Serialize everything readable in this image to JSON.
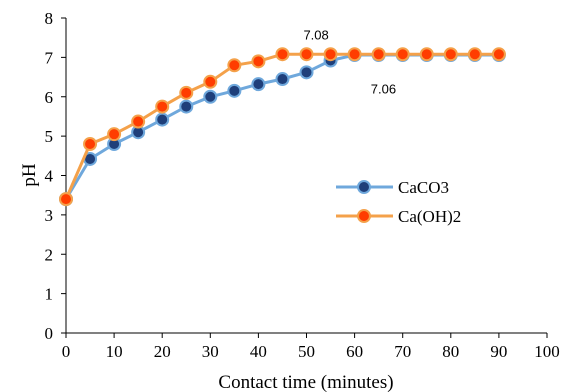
{
  "chart_data": {
    "type": "line",
    "title": "",
    "xlabel": "Contact time (minutes)",
    "ylabel": "pH",
    "xlim": [
      0,
      100
    ],
    "ylim": [
      0,
      8
    ],
    "xticks": [
      0,
      10,
      20,
      30,
      40,
      50,
      60,
      70,
      80,
      90,
      100
    ],
    "yticks": [
      0,
      1,
      2,
      3,
      4,
      5,
      6,
      7,
      8
    ],
    "grid": false,
    "legend_position": "right-middle",
    "x": [
      0,
      5,
      10,
      15,
      20,
      25,
      30,
      35,
      40,
      45,
      50,
      55,
      60,
      65,
      70,
      75,
      80,
      85,
      90
    ],
    "series": [
      {
        "name": "CaCO3",
        "line_color": "#6fa8dc",
        "marker_color": "#1f3f7a",
        "values": [
          3.4,
          4.42,
          4.8,
          5.1,
          5.42,
          5.75,
          6.0,
          6.15,
          6.32,
          6.45,
          6.62,
          6.92,
          7.06,
          7.06,
          7.06,
          7.06,
          7.06,
          7.06,
          7.06
        ]
      },
      {
        "name": "Ca(OH)2",
        "line_color": "#f4a14a",
        "marker_color": "#ff3d00",
        "values": [
          3.4,
          4.8,
          5.05,
          5.37,
          5.75,
          6.1,
          6.38,
          6.8,
          6.9,
          7.08,
          7.08,
          7.08,
          7.08,
          7.08,
          7.08,
          7.08,
          7.08,
          7.08,
          7.08
        ]
      }
    ],
    "annotations": [
      {
        "text": "7.08",
        "x": 52,
        "y": 7.45
      },
      {
        "text": "7.06",
        "x": 66,
        "y": 6.08
      }
    ]
  }
}
